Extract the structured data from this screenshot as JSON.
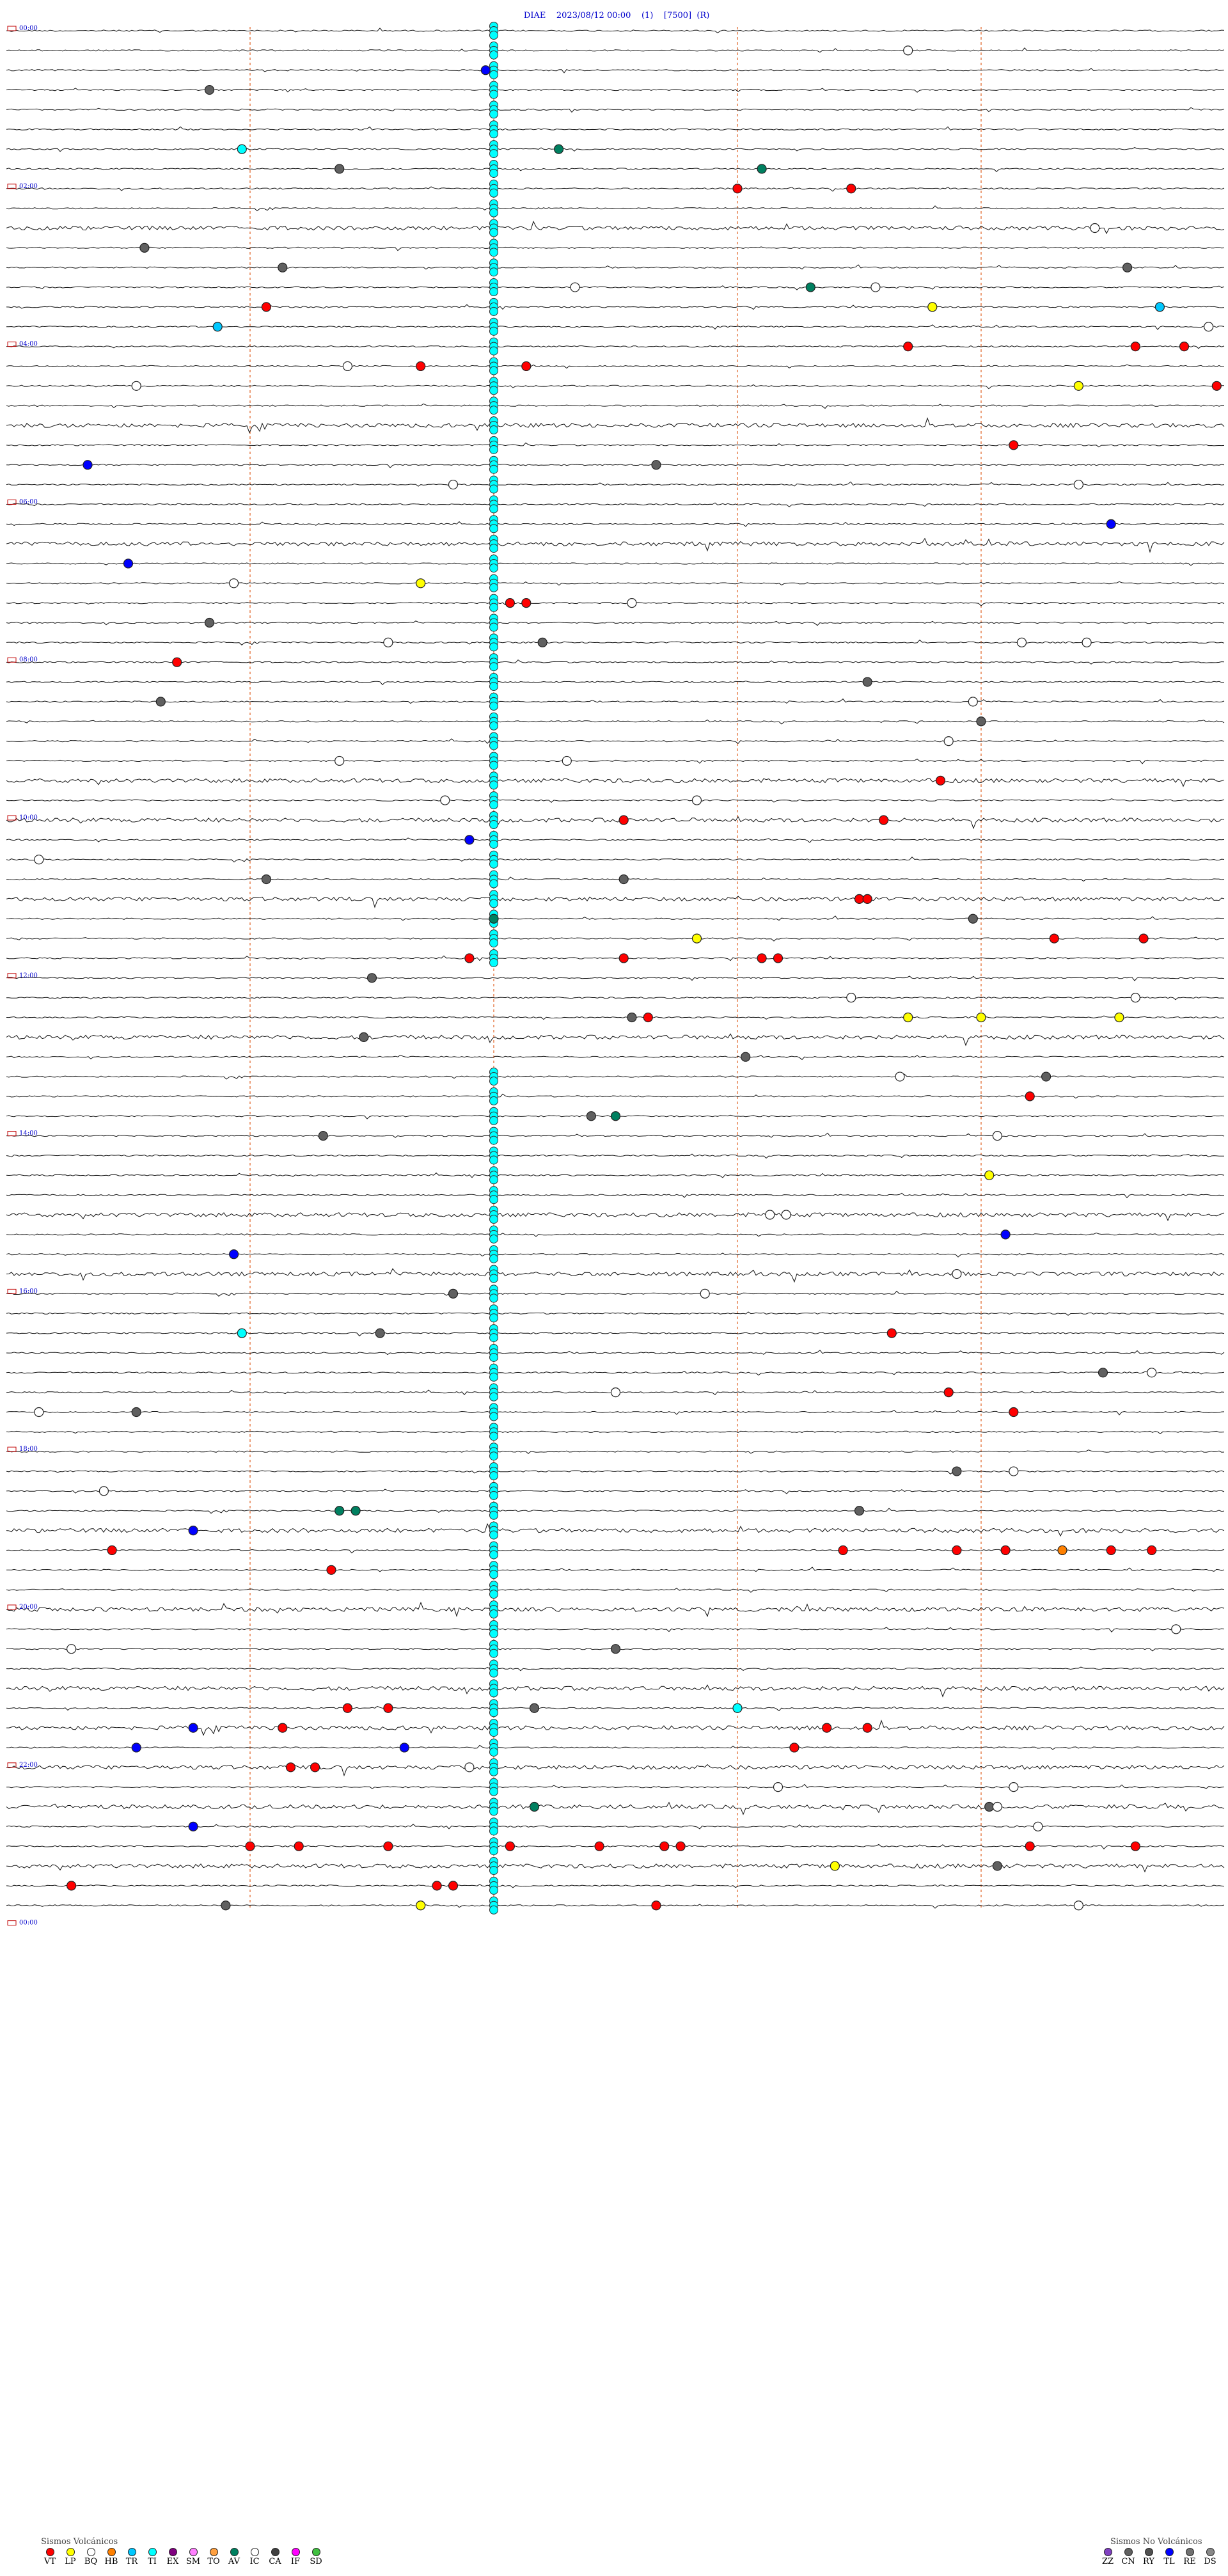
{
  "header": {
    "station": "DIAE",
    "datetime": "2023/08/12 00:00",
    "channel": "(1)",
    "scale": "[7500]",
    "flag": "(R)"
  },
  "chart_data": {
    "type": "helicorder",
    "total_minutes": 1440,
    "minutes_per_line": 15,
    "num_lines": 96,
    "hour_labels": [
      "00:00",
      "02:00",
      "04:00",
      "06:00",
      "08:00",
      "10:00",
      "12:00",
      "14:00",
      "16:00",
      "18:00",
      "20:00",
      "22:00",
      "00:00"
    ],
    "minute_markers": [
      3,
      6,
      9,
      12
    ],
    "event_colors": {
      "VT": "#ff0000",
      "LP": "#ffff00",
      "BQ": "#ffffff",
      "HB": "#ff8000",
      "TR": "#00c8ff",
      "TI": "#00ffff",
      "EX": "#800080",
      "SM": "#ff80ff",
      "TO": "#ffa040",
      "AV": "#008060",
      "IC": "#ffffff",
      "CA": "#404040",
      "IF": "#ff00ff",
      "SD": "#40c040",
      "ZZ": "#8040c0",
      "CN": "#606060",
      "RY": "#505050",
      "TL": "#0000ff",
      "RE": "#707070",
      "DS": "#888888"
    },
    "events": [
      {
        "line": 1,
        "min": 11.1,
        "type": "BQ"
      },
      {
        "line": 2,
        "min": 5.9,
        "type": "TL"
      },
      {
        "line": 3,
        "min": 2.5,
        "type": "CN"
      },
      {
        "line": 6,
        "min": 6.8,
        "type": "AV"
      },
      {
        "line": 6,
        "min": 2.9,
        "type": "TI"
      },
      {
        "line": 7,
        "min": 4.1,
        "type": "CN"
      },
      {
        "line": 7,
        "min": 9.3,
        "type": "AV"
      },
      {
        "line": 8,
        "min": 9.0,
        "type": "VT"
      },
      {
        "line": 8,
        "min": 10.4,
        "type": "VT"
      },
      {
        "line": 10,
        "min": 13.4,
        "type": "BQ"
      },
      {
        "line": 11,
        "min": 1.7,
        "type": "CN"
      },
      {
        "line": 12,
        "min": 3.4,
        "type": "CN"
      },
      {
        "line": 12,
        "min": 13.8,
        "type": "CN"
      },
      {
        "line": 13,
        "min": 7.0,
        "type": "BQ"
      },
      {
        "line": 13,
        "min": 9.9,
        "type": "AV"
      },
      {
        "line": 13,
        "min": 10.7,
        "type": "BQ"
      },
      {
        "line": 14,
        "min": 3.2,
        "type": "VT"
      },
      {
        "line": 14,
        "min": 11.4,
        "type": "LP"
      },
      {
        "line": 14,
        "min": 14.2,
        "type": "TR"
      },
      {
        "line": 15,
        "min": 2.6,
        "type": "TR"
      },
      {
        "line": 15,
        "min": 14.8,
        "type": "BQ"
      },
      {
        "line": 16,
        "min": 11.1,
        "type": "VT"
      },
      {
        "line": 16,
        "min": 13.9,
        "type": "VT"
      },
      {
        "line": 16,
        "min": 14.5,
        "type": "VT"
      },
      {
        "line": 17,
        "min": 6.4,
        "type": "VT"
      },
      {
        "line": 17,
        "min": 4.2,
        "type": "BQ"
      },
      {
        "line": 17,
        "min": 5.1,
        "type": "VT"
      },
      {
        "line": 18,
        "min": 1.6,
        "type": "BQ"
      },
      {
        "line": 18,
        "min": 13.2,
        "type": "LP"
      },
      {
        "line": 18,
        "min": 14.9,
        "type": "VT"
      },
      {
        "line": 21,
        "min": 12.4,
        "type": "VT"
      },
      {
        "line": 22,
        "min": 1.0,
        "type": "TL"
      },
      {
        "line": 22,
        "min": 8.0,
        "type": "CN"
      },
      {
        "line": 23,
        "min": 5.5,
        "type": "BQ"
      },
      {
        "line": 23,
        "min": 13.2,
        "type": "BQ"
      },
      {
        "line": 25,
        "min": 13.6,
        "type": "TL"
      },
      {
        "line": 27,
        "min": 1.5,
        "type": "TL"
      },
      {
        "line": 28,
        "min": 5.1,
        "type": "LP"
      },
      {
        "line": 28,
        "min": 2.8,
        "type": "BQ"
      },
      {
        "line": 29,
        "min": 6.2,
        "type": "VT"
      },
      {
        "line": 29,
        "min": 6.4,
        "type": "VT"
      },
      {
        "line": 29,
        "min": 7.7,
        "type": "BQ"
      },
      {
        "line": 30,
        "min": 2.5,
        "type": "CN"
      },
      {
        "line": 31,
        "min": 4.7,
        "type": "BQ"
      },
      {
        "line": 31,
        "min": 6.6,
        "type": "CN"
      },
      {
        "line": 31,
        "min": 12.5,
        "type": "BQ"
      },
      {
        "line": 31,
        "min": 13.3,
        "type": "BQ"
      },
      {
        "line": 32,
        "min": 2.1,
        "type": "VT"
      },
      {
        "line": 33,
        "min": 10.6,
        "type": "CN"
      },
      {
        "line": 34,
        "min": 1.9,
        "type": "CN"
      },
      {
        "line": 34,
        "min": 11.9,
        "type": "BQ"
      },
      {
        "line": 35,
        "min": 12.0,
        "type": "CN"
      },
      {
        "line": 36,
        "min": 11.6,
        "type": "BQ"
      },
      {
        "line": 37,
        "min": 4.1,
        "type": "BQ"
      },
      {
        "line": 37,
        "min": 6.9,
        "type": "BQ"
      },
      {
        "line": 38,
        "min": 11.5,
        "type": "VT"
      },
      {
        "line": 39,
        "min": 5.4,
        "type": "BQ"
      },
      {
        "line": 39,
        "min": 8.5,
        "type": "BQ"
      },
      {
        "line": 40,
        "min": 7.6,
        "type": "VT"
      },
      {
        "line": 40,
        "min": 10.8,
        "type": "VT"
      },
      {
        "line": 41,
        "min": 5.7,
        "type": "TL"
      },
      {
        "line": 42,
        "min": 0.4,
        "type": "BQ"
      },
      {
        "line": 43,
        "min": 3.2,
        "type": "CN"
      },
      {
        "line": 43,
        "min": 7.6,
        "type": "CN"
      },
      {
        "line": 44,
        "min": 10.5,
        "type": "VT"
      },
      {
        "line": 44,
        "min": 10.6,
        "type": "VT"
      },
      {
        "line": 45,
        "min": 6.0,
        "type": "AV"
      },
      {
        "line": 45,
        "min": 11.9,
        "type": "CN"
      },
      {
        "line": 46,
        "min": 8.5,
        "type": "LP"
      },
      {
        "line": 46,
        "min": 12.9,
        "type": "VT"
      },
      {
        "line": 46,
        "min": 14.0,
        "type": "VT"
      },
      {
        "line": 47,
        "min": 5.7,
        "type": "VT"
      },
      {
        "line": 47,
        "min": 7.6,
        "type": "VT"
      },
      {
        "line": 47,
        "min": 9.3,
        "type": "VT"
      },
      {
        "line": 47,
        "min": 9.5,
        "type": "VT"
      },
      {
        "line": 48,
        "min": 4.5,
        "type": "CN"
      },
      {
        "line": 49,
        "min": 10.4,
        "type": "BQ"
      },
      {
        "line": 49,
        "min": 13.9,
        "type": "BQ"
      },
      {
        "line": 50,
        "min": 7.7,
        "type": "CN"
      },
      {
        "line": 50,
        "min": 7.9,
        "type": "VT"
      },
      {
        "line": 50,
        "min": 11.1,
        "type": "LP"
      },
      {
        "line": 50,
        "min": 12.0,
        "type": "LP"
      },
      {
        "line": 50,
        "min": 13.7,
        "type": "LP"
      },
      {
        "line": 51,
        "min": 4.4,
        "type": "CN"
      },
      {
        "line": 52,
        "min": 9.1,
        "type": "CN"
      },
      {
        "line": 53,
        "min": 12.8,
        "type": "CN"
      },
      {
        "line": 53,
        "min": 11.0,
        "type": "BQ"
      },
      {
        "line": 54,
        "min": 12.6,
        "type": "VT"
      },
      {
        "line": 55,
        "min": 7.2,
        "type": "CN"
      },
      {
        "line": 55,
        "min": 7.5,
        "type": "AV"
      },
      {
        "line": 56,
        "min": 3.9,
        "type": "CN"
      },
      {
        "line": 56,
        "min": 12.2,
        "type": "BQ"
      },
      {
        "line": 58,
        "min": 12.1,
        "type": "LP"
      },
      {
        "line": 60,
        "min": 9.4,
        "type": "BQ"
      },
      {
        "line": 60,
        "min": 9.6,
        "type": "BQ"
      },
      {
        "line": 61,
        "min": 12.3,
        "type": "TL"
      },
      {
        "line": 62,
        "min": 2.8,
        "type": "TL"
      },
      {
        "line": 63,
        "min": 11.7,
        "type": "BQ"
      },
      {
        "line": 64,
        "min": 5.5,
        "type": "CN"
      },
      {
        "line": 64,
        "min": 8.6,
        "type": "BQ"
      },
      {
        "line": 66,
        "min": 2.9,
        "type": "TI"
      },
      {
        "line": 66,
        "min": 4.6,
        "type": "CN"
      },
      {
        "line": 66,
        "min": 10.9,
        "type": "VT"
      },
      {
        "line": 68,
        "min": 13.5,
        "type": "CN"
      },
      {
        "line": 68,
        "min": 14.1,
        "type": "BQ"
      },
      {
        "line": 69,
        "min": 7.5,
        "type": "BQ"
      },
      {
        "line": 69,
        "min": 11.6,
        "type": "VT"
      },
      {
        "line": 70,
        "min": 12.4,
        "type": "VT"
      },
      {
        "line": 70,
        "min": 1.6,
        "type": "CN"
      },
      {
        "line": 70,
        "min": 0.4,
        "type": "BQ"
      },
      {
        "line": 73,
        "min": 11.7,
        "type": "CN"
      },
      {
        "line": 73,
        "min": 12.4,
        "type": "BQ"
      },
      {
        "line": 74,
        "min": 1.2,
        "type": "BQ"
      },
      {
        "line": 75,
        "min": 4.1,
        "type": "AV"
      },
      {
        "line": 75,
        "min": 4.3,
        "type": "AV"
      },
      {
        "line": 75,
        "min": 10.5,
        "type": "CN"
      },
      {
        "line": 76,
        "min": 2.3,
        "type": "TL"
      },
      {
        "line": 77,
        "min": 1.3,
        "type": "VT"
      },
      {
        "line": 77,
        "min": 10.3,
        "type": "VT"
      },
      {
        "line": 77,
        "min": 11.7,
        "type": "VT"
      },
      {
        "line": 77,
        "min": 12.3,
        "type": "VT"
      },
      {
        "line": 77,
        "min": 13.0,
        "type": "HB"
      },
      {
        "line": 77,
        "min": 13.6,
        "type": "VT"
      },
      {
        "line": 77,
        "min": 14.1,
        "type": "VT"
      },
      {
        "line": 78,
        "min": 4.0,
        "type": "VT"
      },
      {
        "line": 81,
        "min": 14.4,
        "type": "BQ"
      },
      {
        "line": 82,
        "min": 0.8,
        "type": "BQ"
      },
      {
        "line": 82,
        "min": 7.5,
        "type": "CN"
      },
      {
        "line": 85,
        "min": 4.2,
        "type": "VT"
      },
      {
        "line": 85,
        "min": 4.7,
        "type": "VT"
      },
      {
        "line": 85,
        "min": 6.5,
        "type": "CN"
      },
      {
        "line": 85,
        "min": 9.0,
        "type": "TI"
      },
      {
        "line": 86,
        "min": 2.3,
        "type": "TL"
      },
      {
        "line": 86,
        "min": 3.4,
        "type": "VT"
      },
      {
        "line": 86,
        "min": 10.1,
        "type": "VT"
      },
      {
        "line": 86,
        "min": 10.6,
        "type": "VT"
      },
      {
        "line": 87,
        "min": 1.6,
        "type": "TL"
      },
      {
        "line": 87,
        "min": 4.9,
        "type": "TL"
      },
      {
        "line": 87,
        "min": 9.7,
        "type": "VT"
      },
      {
        "line": 88,
        "min": 3.5,
        "type": "VT"
      },
      {
        "line": 88,
        "min": 3.8,
        "type": "VT"
      },
      {
        "line": 88,
        "min": 5.7,
        "type": "BQ"
      },
      {
        "line": 89,
        "min": 9.5,
        "type": "BQ"
      },
      {
        "line": 89,
        "min": 12.4,
        "type": "BQ"
      },
      {
        "line": 90,
        "min": 6.5,
        "type": "AV"
      },
      {
        "line": 90,
        "min": 12.1,
        "type": "CN"
      },
      {
        "line": 90,
        "min": 12.2,
        "type": "BQ"
      },
      {
        "line": 91,
        "min": 2.3,
        "type": "TL"
      },
      {
        "line": 91,
        "min": 12.7,
        "type": "BQ"
      },
      {
        "line": 92,
        "min": 3.0,
        "type": "VT"
      },
      {
        "line": 92,
        "min": 3.6,
        "type": "VT"
      },
      {
        "line": 92,
        "min": 4.7,
        "type": "VT"
      },
      {
        "line": 92,
        "min": 6.2,
        "type": "VT"
      },
      {
        "line": 92,
        "min": 7.3,
        "type": "VT"
      },
      {
        "line": 92,
        "min": 8.1,
        "type": "VT"
      },
      {
        "line": 92,
        "min": 8.3,
        "type": "VT"
      },
      {
        "line": 92,
        "min": 12.6,
        "type": "VT"
      },
      {
        "line": 92,
        "min": 13.9,
        "type": "VT"
      },
      {
        "line": 93,
        "min": 10.2,
        "type": "LP"
      },
      {
        "line": 93,
        "min": 12.2,
        "type": "CN"
      },
      {
        "line": 94,
        "min": 5.3,
        "type": "VT"
      },
      {
        "line": 94,
        "min": 5.5,
        "type": "VT"
      },
      {
        "line": 94,
        "min": 0.8,
        "type": "VT"
      },
      {
        "line": 95,
        "min": 8.0,
        "type": "VT"
      },
      {
        "line": 95,
        "min": 2.7,
        "type": "CN"
      },
      {
        "line": 95,
        "min": 5.1,
        "type": "LP"
      },
      {
        "line": 95,
        "min": 13.2,
        "type": "BQ"
      }
    ],
    "tremor_runs": [
      {
        "line_start": 0,
        "line_end": 47,
        "min": 6.0,
        "type": "TI"
      },
      {
        "line_start": 53,
        "line_end": 95,
        "min": 6.0,
        "type": "TI"
      }
    ],
    "busy_lines": [
      10,
      20,
      26,
      38,
      40,
      44,
      51,
      60,
      63,
      76,
      80,
      84,
      86,
      88,
      90,
      93
    ]
  },
  "legend_volcanic": {
    "title": "Sismos Volcánicos",
    "items": [
      {
        "code": "VT",
        "color": "#ff0000"
      },
      {
        "code": "LP",
        "color": "#ffff00"
      },
      {
        "code": "BQ",
        "color": "#ffffff"
      },
      {
        "code": "HB",
        "color": "#ff8000"
      },
      {
        "code": "TR",
        "color": "#00c8ff"
      },
      {
        "code": "TI",
        "color": "#00ffff"
      },
      {
        "code": "EX",
        "color": "#800080"
      },
      {
        "code": "SM",
        "color": "#ff80ff"
      },
      {
        "code": "TO",
        "color": "#ffa040"
      },
      {
        "code": "AV",
        "color": "#008060"
      },
      {
        "code": "IC",
        "color": "#ffffff"
      },
      {
        "code": "CA",
        "color": "#404040"
      },
      {
        "code": "IF",
        "color": "#ff00ff"
      },
      {
        "code": "SD",
        "color": "#40c040"
      }
    ]
  },
  "legend_nonvolcanic": {
    "title": "Sismos No Volcánicos",
    "items": [
      {
        "code": "ZZ",
        "color": "#8040c0"
      },
      {
        "code": "CN",
        "color": "#606060"
      },
      {
        "code": "RY",
        "color": "#505050"
      },
      {
        "code": "TL",
        "color": "#0000ff"
      },
      {
        "code": "RE",
        "color": "#707070"
      },
      {
        "code": "DS",
        "color": "#888888"
      }
    ]
  }
}
